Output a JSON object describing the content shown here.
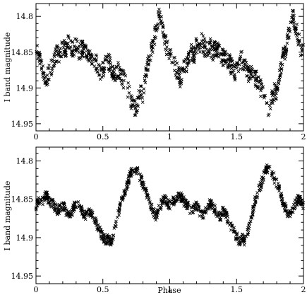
{
  "chart_data": [
    {
      "type": "scatter",
      "panel": "top",
      "ylabel": "I band magnitude",
      "xlabel": "",
      "xlim": [
        0,
        2
      ],
      "ylim": [
        14.96,
        14.782
      ],
      "y_inverted": true,
      "x_ticks": [
        "0",
        "0.5",
        "1",
        "1.5",
        "2"
      ],
      "y_ticks": [
        "14.8",
        "14.85",
        "14.9",
        "14.95"
      ],
      "x_tick_values": [
        0,
        0.5,
        1,
        1.5,
        2
      ],
      "y_tick_values": [
        14.8,
        14.85,
        14.9,
        14.95
      ],
      "marker": "x",
      "description_points": [
        [
          0.0,
          14.848
        ],
        [
          0.02,
          14.858
        ],
        [
          0.04,
          14.87
        ],
        [
          0.06,
          14.88
        ],
        [
          0.08,
          14.888
        ],
        [
          0.1,
          14.875
        ],
        [
          0.12,
          14.87
        ],
        [
          0.14,
          14.86
        ],
        [
          0.16,
          14.85
        ],
        [
          0.18,
          14.855
        ],
        [
          0.2,
          14.84
        ],
        [
          0.22,
          14.85
        ],
        [
          0.24,
          14.835
        ],
        [
          0.26,
          14.843
        ],
        [
          0.28,
          14.848
        ],
        [
          0.3,
          14.84
        ],
        [
          0.32,
          14.852
        ],
        [
          0.34,
          14.845
        ],
        [
          0.36,
          14.848
        ],
        [
          0.38,
          14.855
        ],
        [
          0.4,
          14.858
        ],
        [
          0.42,
          14.855
        ],
        [
          0.44,
          14.862
        ],
        [
          0.46,
          14.87
        ],
        [
          0.48,
          14.88
        ],
        [
          0.5,
          14.875
        ],
        [
          0.52,
          14.865
        ],
        [
          0.54,
          14.86
        ],
        [
          0.56,
          14.87
        ],
        [
          0.58,
          14.878
        ],
        [
          0.6,
          14.88
        ],
        [
          0.62,
          14.875
        ],
        [
          0.64,
          14.885
        ],
        [
          0.66,
          14.89
        ],
        [
          0.68,
          14.9
        ],
        [
          0.7,
          14.91
        ],
        [
          0.72,
          14.922
        ],
        [
          0.74,
          14.93
        ],
        [
          0.76,
          14.92
        ],
        [
          0.78,
          14.905
        ],
        [
          0.8,
          14.91
        ],
        [
          0.82,
          14.88
        ],
        [
          0.84,
          14.862
        ],
        [
          0.86,
          14.85
        ],
        [
          0.88,
          14.835
        ],
        [
          0.9,
          14.815
        ],
        [
          0.92,
          14.8
        ],
        [
          0.94,
          14.812
        ],
        [
          0.96,
          14.83
        ],
        [
          0.98,
          14.845
        ]
      ]
    },
    {
      "type": "scatter",
      "panel": "bottom",
      "ylabel": "I band magnitude",
      "xlabel": "Phase",
      "xlim": [
        0,
        2
      ],
      "ylim": [
        14.96,
        14.782
      ],
      "y_inverted": true,
      "x_ticks": [
        "0",
        "0.5",
        "1",
        "1.5",
        "2"
      ],
      "y_ticks": [
        "14.8",
        "14.85",
        "14.9",
        "14.95"
      ],
      "x_tick_values": [
        0,
        0.5,
        1,
        1.5,
        2
      ],
      "y_tick_values": [
        14.8,
        14.85,
        14.9,
        14.95
      ],
      "marker": "x",
      "description_points": [
        [
          0.0,
          14.858
        ],
        [
          0.02,
          14.852
        ],
        [
          0.04,
          14.855
        ],
        [
          0.06,
          14.848
        ],
        [
          0.08,
          14.845
        ],
        [
          0.1,
          14.852
        ],
        [
          0.12,
          14.855
        ],
        [
          0.14,
          14.86
        ],
        [
          0.16,
          14.865
        ],
        [
          0.18,
          14.862
        ],
        [
          0.2,
          14.858
        ],
        [
          0.22,
          14.865
        ],
        [
          0.24,
          14.87
        ],
        [
          0.26,
          14.868
        ],
        [
          0.28,
          14.862
        ],
        [
          0.3,
          14.855
        ],
        [
          0.32,
          14.858
        ],
        [
          0.34,
          14.865
        ],
        [
          0.36,
          14.87
        ],
        [
          0.38,
          14.872
        ],
        [
          0.4,
          14.865
        ],
        [
          0.42,
          14.87
        ],
        [
          0.44,
          14.878
        ],
        [
          0.46,
          14.885
        ],
        [
          0.48,
          14.892
        ],
        [
          0.5,
          14.898
        ],
        [
          0.52,
          14.905
        ],
        [
          0.54,
          14.9
        ],
        [
          0.56,
          14.905
        ],
        [
          0.58,
          14.895
        ],
        [
          0.6,
          14.88
        ],
        [
          0.62,
          14.865
        ],
        [
          0.64,
          14.85
        ],
        [
          0.66,
          14.84
        ],
        [
          0.68,
          14.832
        ],
        [
          0.7,
          14.82
        ],
        [
          0.72,
          14.812
        ],
        [
          0.74,
          14.808
        ],
        [
          0.76,
          14.815
        ],
        [
          0.78,
          14.822
        ],
        [
          0.8,
          14.83
        ],
        [
          0.82,
          14.838
        ],
        [
          0.84,
          14.85
        ],
        [
          0.86,
          14.86
        ],
        [
          0.88,
          14.868
        ],
        [
          0.9,
          14.872
        ],
        [
          0.92,
          14.862
        ],
        [
          0.94,
          14.855
        ],
        [
          0.96,
          14.85
        ],
        [
          0.98,
          14.853
        ]
      ]
    }
  ]
}
